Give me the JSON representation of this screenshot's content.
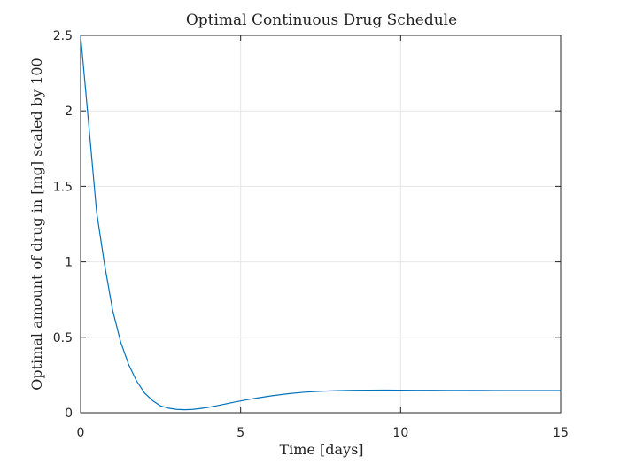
{
  "chart_data": {
    "type": "line",
    "title": "Optimal Continuous Drug Schedule",
    "xlabel": "Time [days]",
    "ylabel": "Optimal amount of drug in [mg] scaled by 100",
    "xlim": [
      0,
      15
    ],
    "ylim": [
      0,
      2.5
    ],
    "xticks": [
      0,
      5,
      10,
      15
    ],
    "xtick_labels": [
      "0",
      "5",
      "10",
      "15"
    ],
    "yticks": [
      0,
      0.5,
      1,
      1.5,
      2,
      2.5
    ],
    "ytick_labels": [
      "0",
      "0.5",
      "1",
      "1.5",
      "2",
      "2.5"
    ],
    "grid": true,
    "line_color": "#0072BD",
    "series": [
      {
        "x": [
          0,
          0.25,
          0.5,
          0.75,
          1,
          1.25,
          1.5,
          1.75,
          2,
          2.25,
          2.5,
          2.75,
          3,
          3.25,
          3.5,
          3.75,
          4,
          4.25,
          4.5,
          4.75,
          5,
          5.5,
          6,
          6.5,
          7,
          7.5,
          8,
          8.5,
          9,
          9.5,
          10,
          10.5,
          11,
          11.5,
          12,
          12.5,
          13,
          13.5,
          14,
          14.5,
          15
        ],
        "y": [
          2.5,
          1.92,
          1.33,
          0.98,
          0.68,
          0.47,
          0.32,
          0.21,
          0.13,
          0.08,
          0.045,
          0.03,
          0.022,
          0.02,
          0.022,
          0.028,
          0.036,
          0.046,
          0.057,
          0.068,
          0.078,
          0.097,
          0.113,
          0.126,
          0.136,
          0.142,
          0.146,
          0.148,
          0.149,
          0.1495,
          0.149,
          0.1485,
          0.148,
          0.1478,
          0.1476,
          0.1474,
          0.1472,
          0.147,
          0.147,
          0.147,
          0.147
        ]
      }
    ]
  }
}
